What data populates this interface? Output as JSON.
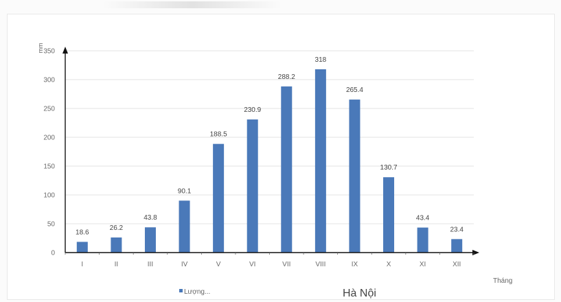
{
  "chart_data": {
    "type": "bar",
    "title": "Hà Nội",
    "ylabel": "mm",
    "xlabel": "Tháng",
    "categories": [
      "I",
      "II",
      "III",
      "IV",
      "V",
      "VI",
      "VII",
      "VIII",
      "IX",
      "X",
      "XI",
      "XII"
    ],
    "series": [
      {
        "name": "Lượng...",
        "values": [
          18.6,
          26.2,
          43.8,
          90.1,
          188.5,
          230.9,
          288.2,
          318,
          265.4,
          130.7,
          43.4,
          23.4
        ]
      }
    ],
    "value_labels": [
      "18.6",
      "26.2",
      "43.8",
      "90.1",
      "188.5",
      "230.9",
      "288.2",
      "318",
      "265.4",
      "130.7",
      "43.4",
      "23.4"
    ],
    "ylim": [
      0,
      350
    ],
    "yticks": [
      0,
      50,
      100,
      150,
      200,
      250,
      300,
      350
    ],
    "grid": true,
    "legend": "bottom-left",
    "colors": {
      "bar": "#4a79b9",
      "grid": "#e3e3e3",
      "axis": "#111111"
    }
  }
}
